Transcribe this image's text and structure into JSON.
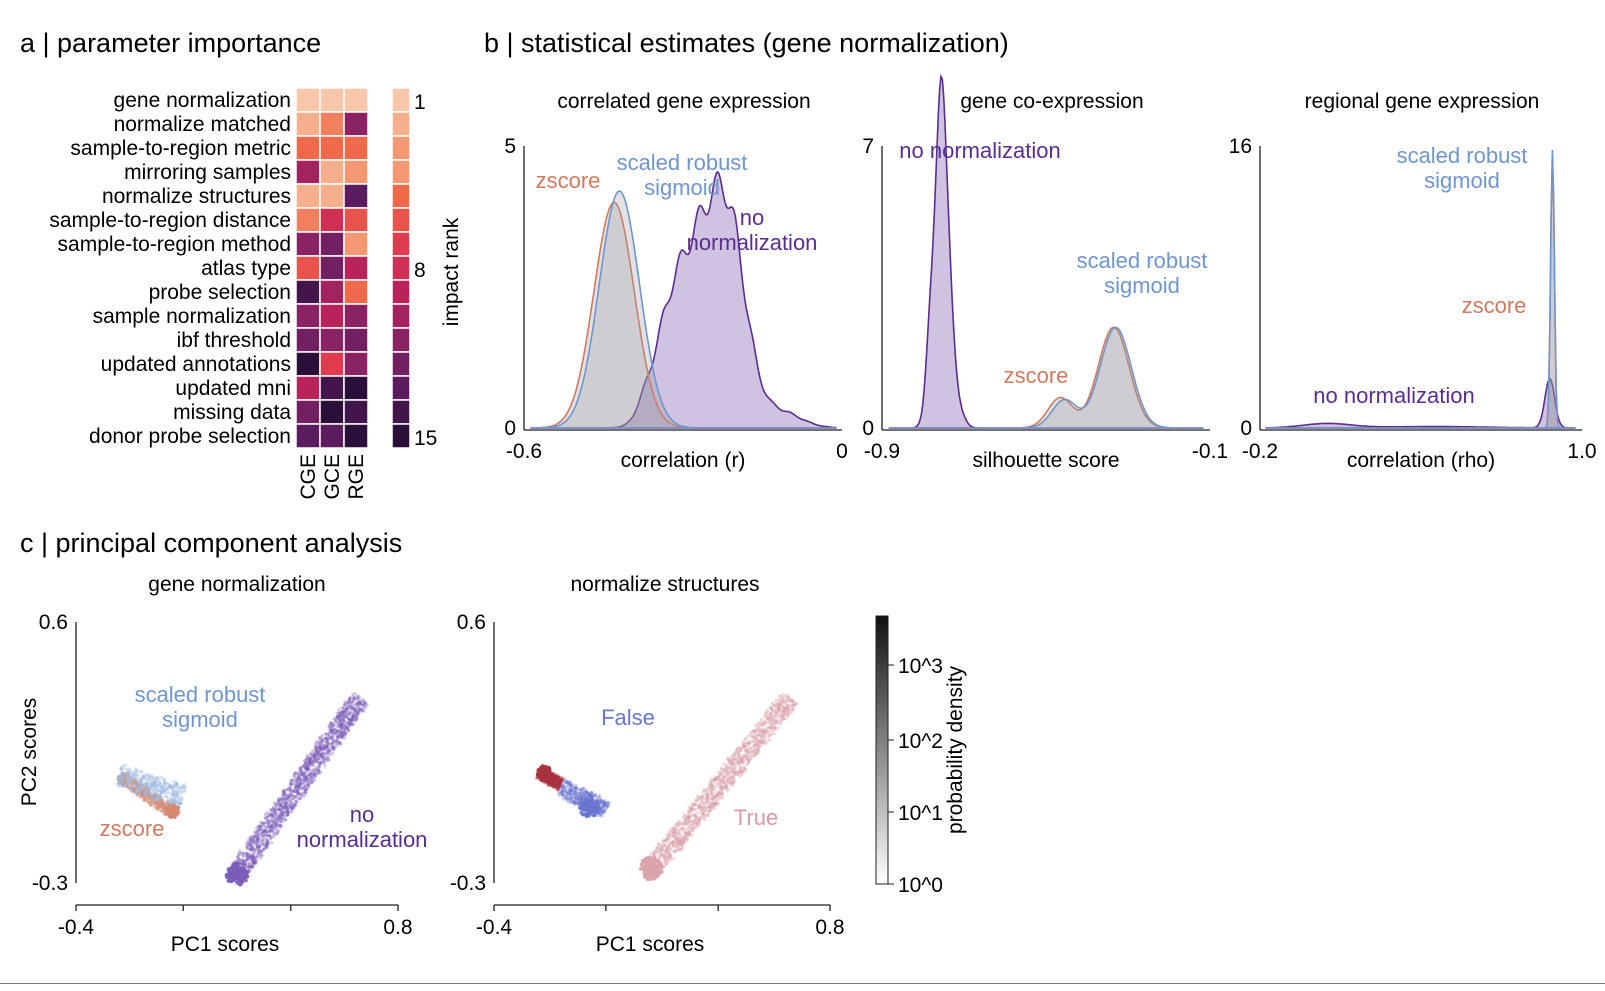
{
  "panel_a": {
    "title": "a | parameter importance",
    "params": [
      "gene normalization",
      "normalize matched",
      "sample-to-region metric",
      "mirroring samples",
      "normalize structures",
      "sample-to-region distance",
      "sample-to-region method",
      "atlas type",
      "probe selection",
      "sample normalization",
      "ibf threshold",
      "updated annotations",
      "updated mni",
      "missing data",
      "donor probe selection"
    ],
    "columns": [
      "CGE",
      "GCE",
      "RGE"
    ],
    "ranks": [
      [
        1,
        1,
        1
      ],
      [
        2,
        4,
        11
      ],
      [
        5,
        5,
        5
      ],
      [
        10,
        2,
        3
      ],
      [
        2,
        2,
        13
      ],
      [
        4,
        8,
        6
      ],
      [
        11,
        12,
        3
      ],
      [
        6,
        12,
        9
      ],
      [
        14,
        10,
        5
      ],
      [
        11,
        9,
        11
      ],
      [
        12,
        11,
        12
      ],
      [
        15,
        7,
        11
      ],
      [
        9,
        14,
        15
      ],
      [
        12,
        15,
        14
      ],
      [
        13,
        13,
        15
      ]
    ],
    "overall_rank": [
      1,
      2,
      3,
      3,
      5,
      6,
      7,
      8,
      9,
      10,
      11,
      12,
      13,
      14,
      15
    ],
    "colorbar_label": "impact rank",
    "colorbar_ticks": [
      "1",
      "8",
      "15"
    ]
  },
  "panel_b_title": "b | statistical estimates (gene normalization)",
  "panel_c_title": "c | principal component analysis",
  "colors": {
    "zscore": "#d17a5f",
    "srs": "#6f96cf",
    "nonorm": "#5a2d91",
    "false": "#6b76d0",
    "true": "#d99aa4",
    "true_dark": "#a8323e"
  },
  "chart_data": [
    {
      "type": "area",
      "title": "correlated gene expression",
      "xlabel": "correlation (r)",
      "xlim": [
        -0.6,
        0
      ],
      "ylim": [
        0,
        5
      ],
      "x_ticks": [
        "-0.6",
        "0"
      ],
      "y_ticks": [
        "0",
        "5"
      ],
      "series": [
        {
          "name": "zscore",
          "peaks": [
            [
              -0.43,
              4.0,
              0.038
            ]
          ]
        },
        {
          "name": "scaled robust sigmoid",
          "peaks": [
            [
              -0.42,
              4.2,
              0.038
            ]
          ]
        },
        {
          "name": "no normalization",
          "peaks": [
            [
              -0.27,
              3.2,
              0.045
            ],
            [
              -0.21,
              2.6,
              0.032
            ],
            [
              -0.33,
              0.9,
              0.025
            ],
            [
              -0.12,
              0.3,
              0.04
            ],
            [
              -0.37,
              0.3,
              0.018
            ]
          ]
        }
      ],
      "annotations": [
        {
          "text": [
            "zscore"
          ],
          "series": "zscore"
        },
        {
          "text": [
            "scaled robust",
            "sigmoid"
          ],
          "series": "scaled robust sigmoid"
        },
        {
          "text": [
            "no",
            "normalization"
          ],
          "series": "no normalization"
        }
      ]
    },
    {
      "type": "area",
      "title": "gene co-expression",
      "xlabel": "silhouette score",
      "xlim": [
        -0.9,
        -0.1
      ],
      "ylim": [
        0,
        7
      ],
      "x_ticks": [
        "-0.9",
        "-0.1"
      ],
      "y_ticks": [
        "0",
        "7"
      ],
      "series": [
        {
          "name": "zscore",
          "peaks": [
            [
              -0.335,
              2.5,
              0.038
            ],
            [
              -0.465,
              0.75,
              0.03
            ]
          ]
        },
        {
          "name": "scaled robust sigmoid",
          "peaks": [
            [
              -0.33,
              2.5,
              0.038
            ],
            [
              -0.455,
              0.7,
              0.03
            ]
          ]
        },
        {
          "name": "no normalization",
          "peaks": [
            [
              -0.75,
              6.6,
              0.013
            ],
            [
              -0.773,
              4.0,
              0.014
            ],
            [
              -0.73,
              1.3,
              0.018
            ]
          ]
        }
      ],
      "annotations": [
        {
          "text": [
            "no normalization"
          ],
          "series": "no normalization"
        },
        {
          "text": [
            "scaled robust",
            "sigmoid"
          ],
          "series": "scaled robust sigmoid"
        },
        {
          "text": [
            "zscore"
          ],
          "series": "zscore"
        }
      ]
    },
    {
      "type": "area",
      "title": "regional gene expression",
      "xlabel": "correlation (rho)",
      "xlim": [
        -0.2,
        1.0
      ],
      "ylim": [
        0,
        16
      ],
      "x_ticks": [
        "-0.2",
        "1.0"
      ],
      "y_ticks": [
        "0",
        "16"
      ],
      "series": [
        {
          "name": "zscore",
          "peaks": [
            [
              0.89,
              15.5,
              0.007
            ]
          ]
        },
        {
          "name": "scaled robust sigmoid",
          "peaks": [
            [
              0.89,
              15.8,
              0.007
            ]
          ]
        },
        {
          "name": "no normalization",
          "peaks": [
            [
              0.88,
              2.8,
              0.018
            ],
            [
              0.05,
              0.25,
              0.09
            ],
            [
              0.45,
              0.08,
              0.2
            ]
          ]
        }
      ],
      "annotations": [
        {
          "text": [
            "scaled robust",
            "sigmoid"
          ],
          "series": "scaled robust sigmoid"
        },
        {
          "text": [
            "zscore"
          ],
          "series": "zscore"
        },
        {
          "text": [
            "no normalization"
          ],
          "series": "no normalization"
        }
      ]
    },
    {
      "type": "scatter",
      "title": "gene normalization",
      "xlabel": "PC1 scores",
      "ylabel": "PC2 scores",
      "xlim": [
        -0.4,
        0.8
      ],
      "ylim": [
        -0.3,
        0.6
      ],
      "x_ticks": [
        "-0.4",
        "0.8"
      ],
      "y_ticks": [
        "-0.3",
        "0.6"
      ],
      "clusters": [
        {
          "name": "no normalization",
          "from": [
            0.19,
            -0.28
          ],
          "to": [
            0.66,
            0.34
          ],
          "halfwidth": 0.04,
          "dense_end": [
            0.2,
            -0.27
          ]
        },
        {
          "name": "zscore",
          "from": [
            -0.24,
            0.07
          ],
          "to": [
            -0.05,
            -0.05
          ],
          "halfwidth": 0.025,
          "dense_end": [
            -0.04,
            -0.05
          ]
        },
        {
          "name": "scaled robust sigmoid",
          "from": [
            -0.24,
            0.07
          ],
          "to": [
            0.0,
            0.0
          ],
          "halfwidth": 0.045,
          "dense_end": null
        }
      ],
      "annotations": [
        {
          "text": [
            "scaled robust",
            "sigmoid"
          ],
          "series": "scaled robust sigmoid"
        },
        {
          "text": [
            "zscore"
          ],
          "series": "zscore"
        },
        {
          "text": [
            "no",
            "normalization"
          ],
          "series": "no normalization"
        }
      ]
    },
    {
      "type": "scatter",
      "title": "normalize structures",
      "xlabel": "PC1 scores",
      "ylabel": "",
      "xlim": [
        -0.4,
        0.8
      ],
      "ylim": [
        -0.3,
        0.6
      ],
      "x_ticks": [
        "-0.4",
        "0.8"
      ],
      "y_ticks": [
        "-0.3",
        "0.6"
      ],
      "clusters": [
        {
          "name": "True",
          "from": [
            0.15,
            -0.27
          ],
          "to": [
            0.66,
            0.34
          ],
          "halfwidth": 0.04,
          "dense_end": [
            0.16,
            -0.25
          ]
        },
        {
          "name": "True",
          "from": [
            -0.24,
            0.08
          ],
          "to": [
            -0.16,
            0.04
          ],
          "halfwidth": 0.025,
          "dense_end": [
            -0.22,
            0.08
          ]
        },
        {
          "name": "False",
          "from": [
            -0.16,
            0.03
          ],
          "to": [
            0.0,
            -0.05
          ],
          "halfwidth": 0.035,
          "dense_end": [
            -0.06,
            -0.04
          ]
        }
      ],
      "annotations": [
        {
          "text": [
            "False"
          ],
          "series": "False"
        },
        {
          "text": [
            "True"
          ],
          "series": "True"
        }
      ]
    }
  ],
  "colorbar_c": {
    "label": "probability density",
    "ticks": [
      "10^0",
      "10^1",
      "10^2",
      "10^3"
    ]
  }
}
